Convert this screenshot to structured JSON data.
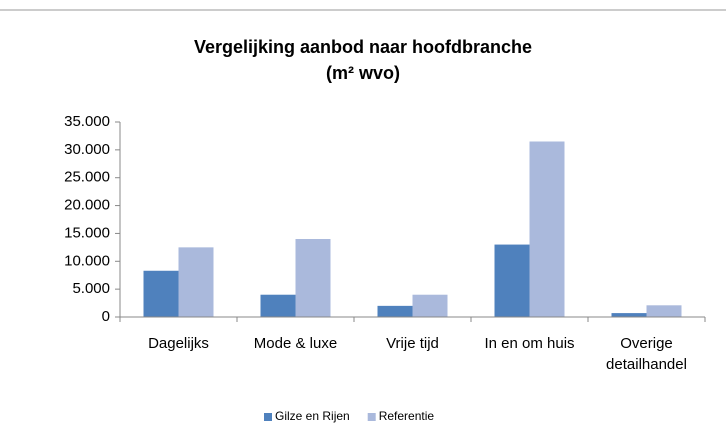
{
  "chart_data": {
    "type": "bar",
    "title": "Vergelijking aanbod naar hoofdbranche",
    "subtitle": "(m² wvo)",
    "categories": [
      "Dagelijks",
      "Mode & luxe",
      "Vrije tijd",
      "In en om huis",
      "Overige detailhandel"
    ],
    "series": [
      {
        "name": "Gilze en Rijen",
        "color": "#4f81bd",
        "values": [
          8300,
          4000,
          2000,
          13000,
          700
        ]
      },
      {
        "name": "Referentie",
        "color": "#aab9dc",
        "values": [
          12500,
          14000,
          4000,
          31500,
          2100
        ]
      }
    ],
    "ylim": [
      0,
      35000
    ],
    "yticks": [
      0,
      {
        "value": 5000,
        "label": "5.000"
      },
      {
        "value": 10000,
        "label": "10.000"
      },
      {
        "value": 15000,
        "label": "15.000"
      },
      {
        "value": 20000,
        "label": "20.000"
      },
      {
        "value": 25000,
        "label": "25.000"
      },
      {
        "value": 30000,
        "label": "30.000"
      },
      {
        "value": 35000,
        "label": "35.000"
      }
    ],
    "grid": false,
    "legend": "bottom"
  }
}
